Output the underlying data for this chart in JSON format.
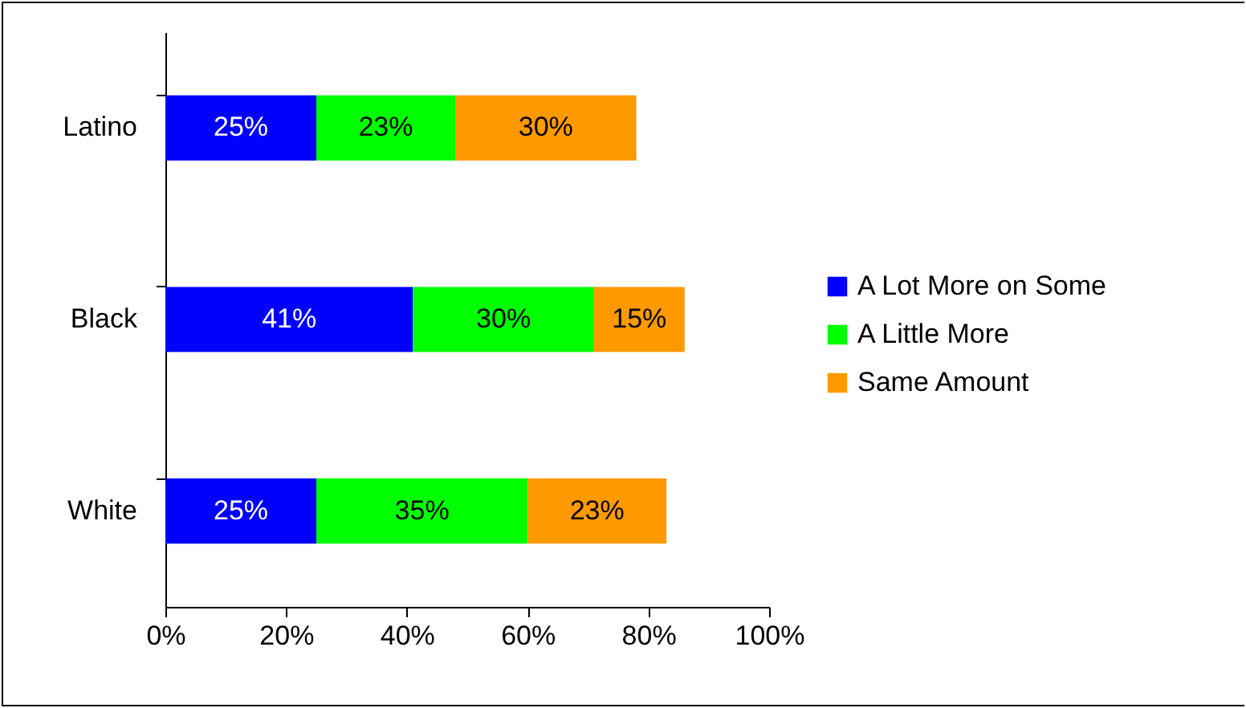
{
  "chart_data": {
    "type": "bar",
    "orientation": "horizontal",
    "stacked": true,
    "categories": [
      "Latino",
      "Black",
      "White"
    ],
    "series": [
      {
        "name": "A Lot More on Some",
        "color": "#0000ff",
        "values": [
          25,
          41,
          25
        ],
        "value_labels": [
          "25%",
          "41%",
          "25%"
        ]
      },
      {
        "name": "A Little More",
        "color": "#00ff00",
        "values": [
          23,
          30,
          35
        ],
        "value_labels": [
          "23%",
          "30%",
          "35%"
        ]
      },
      {
        "name": "Same Amount",
        "color": "#ff9900",
        "values": [
          30,
          15,
          23
        ],
        "value_labels": [
          "30%",
          "15%",
          "23%"
        ]
      }
    ],
    "xlim": [
      0,
      100
    ],
    "xticks": [
      {
        "value": 0,
        "label": "0%"
      },
      {
        "value": 20,
        "label": "20%"
      },
      {
        "value": 40,
        "label": "40%"
      },
      {
        "value": 60,
        "label": "60%"
      },
      {
        "value": 80,
        "label": "80%"
      },
      {
        "value": 100,
        "label": "100%"
      }
    ],
    "grid": false,
    "legend": "right"
  }
}
